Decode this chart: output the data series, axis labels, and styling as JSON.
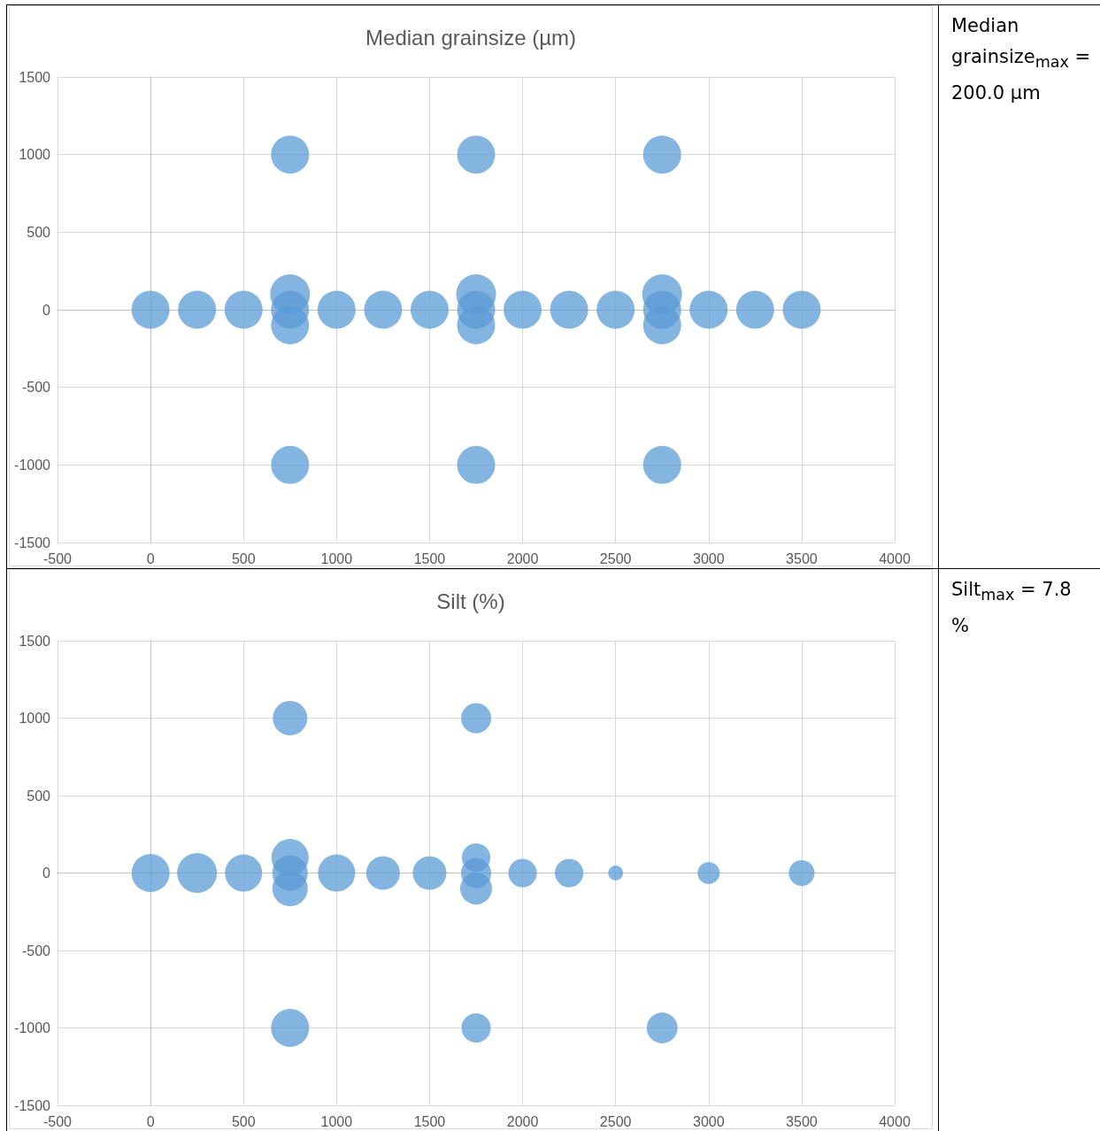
{
  "chart_data": [
    {
      "type": "bubble",
      "title": "Median grainsize (µm)",
      "color": "#5b9bd5",
      "grid": true,
      "xlim": [
        -500,
        4000
      ],
      "xticks": [
        -500,
        0,
        500,
        1000,
        1500,
        2000,
        2500,
        3000,
        3500,
        4000
      ],
      "ylim": [
        -1500,
        1500
      ],
      "yticks": [
        -1500,
        -1000,
        -500,
        0,
        500,
        1000,
        1500
      ],
      "x": [
        0,
        250,
        500,
        750,
        750,
        750,
        750,
        750,
        1000,
        1250,
        1500,
        1750,
        1750,
        1750,
        1750,
        1750,
        2000,
        2250,
        2500,
        2750,
        2750,
        2750,
        2750,
        2750,
        3000,
        3250,
        3500
      ],
      "values": [
        0,
        0,
        0,
        0,
        100,
        -100,
        1000,
        -1000,
        0,
        0,
        0,
        0,
        100,
        -100,
        1000,
        -1000,
        0,
        0,
        0,
        0,
        100,
        -100,
        1000,
        -1000,
        0,
        0,
        0
      ],
      "sizes": [
        0.91,
        0.91,
        0.91,
        0.91,
        1,
        0.91,
        0.91,
        0.91,
        0.91,
        0.91,
        0.91,
        0.91,
        1,
        0.91,
        0.91,
        0.91,
        0.91,
        0.91,
        0.91,
        0.91,
        1,
        0.91,
        0.91,
        0.91,
        0.91,
        0.91,
        0.91
      ]
    },
    {
      "type": "other",
      "annotations": [
        "Median grainsize$_{max}$ = 200.0 µm"
      ]
    },
    {
      "type": "bubble",
      "title": "Silt (%)",
      "color": "#5b9bd5",
      "grid": true,
      "xlim": [
        -500,
        4000
      ],
      "xticks": [
        -500,
        0,
        500,
        1000,
        1500,
        2000,
        2500,
        3000,
        3500,
        4000
      ],
      "ylim": [
        -1500,
        1500
      ],
      "yticks": [
        -1500,
        -1000,
        -500,
        0,
        500,
        1000,
        1500
      ],
      "x": [
        0,
        250,
        500,
        750,
        750,
        750,
        750,
        750,
        1000,
        1250,
        1500,
        1750,
        1750,
        1750,
        1750,
        1750,
        2000,
        2250,
        2500,
        2750,
        3000,
        3500
      ],
      "values": [
        0,
        0,
        0,
        0,
        100,
        -100,
        1000,
        -1000,
        0,
        0,
        0,
        0,
        100,
        -100,
        1000,
        -1000,
        0,
        0,
        0,
        -1000,
        0,
        0
      ],
      "sizes": [
        0.91,
        1,
        0.87,
        0.79,
        0.87,
        0.79,
        0.75,
        0.91,
        0.87,
        0.71,
        0.71,
        0.57,
        0.51,
        0.64,
        0.57,
        0.54,
        0.51,
        0.51,
        0.14,
        0.6,
        0.31,
        0.42
      ]
    },
    {
      "type": "other",
      "annotations": [
        "Silt$_{max}$ = 7.8 %"
      ]
    }
  ]
}
